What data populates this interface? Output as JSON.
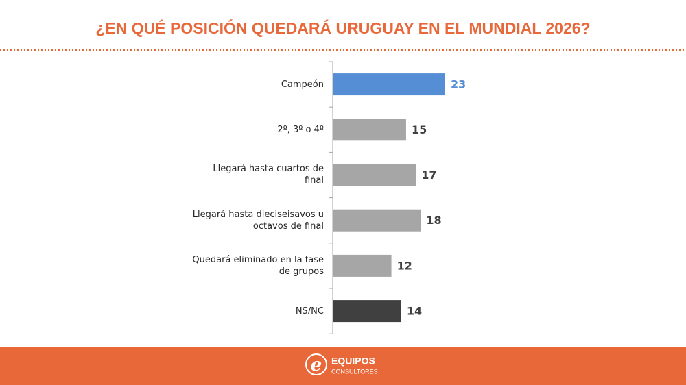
{
  "chart_data": {
    "type": "barh",
    "title": "¿EN QUÉ POSICIÓN QUEDARÁ URUGUAY EN EL MUNDIAL 2026?",
    "categories": [
      "Campeón",
      "2º, 3º o 4º",
      "Llegará hasta cuartos de final",
      "Llegará hasta dieciseisavos u octavos de final",
      "Quedará eliminado en la fase de grupos",
      "NS/NC"
    ],
    "values": [
      23,
      15,
      17,
      18,
      12,
      14
    ],
    "colors": [
      "#558ed5",
      "#a6a6a6",
      "#a6a6a6",
      "#a6a6a6",
      "#a6a6a6",
      "#404040"
    ],
    "value_label_colors": [
      "#558ed5",
      "#404040",
      "#404040",
      "#404040",
      "#404040",
      "#404040"
    ]
  },
  "footer": {
    "logo_mark": "e",
    "brand": "EQUIPOS",
    "sub": "CONSULTORES"
  }
}
